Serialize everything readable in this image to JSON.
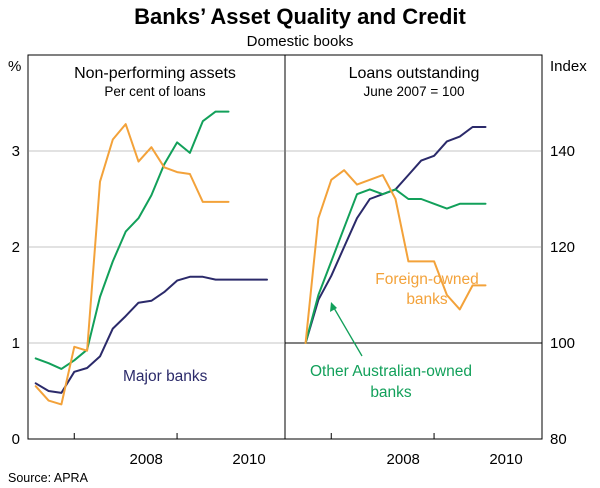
{
  "title": "Banks’ Asset Quality and Credit",
  "subtitle": "Domestic books",
  "source": "Source: APRA",
  "colors": {
    "major": "#2b2a6a",
    "other": "#12a05a",
    "foreign": "#f3a23a",
    "axis": "#000000"
  },
  "chart_data": [
    {
      "type": "line",
      "title": "Non-performing assets",
      "subtitle": "Per cent of loans",
      "ylabel": "%",
      "ylim": [
        0,
        4
      ],
      "yticks": [
        0,
        1,
        2,
        3
      ],
      "xlim": [
        2006.6,
        2011.6
      ],
      "xticks": [
        "2008",
        "2010"
      ],
      "xtick_values": [
        2008.9,
        2010.9
      ],
      "year_dividers": [
        2007.5,
        2009.5
      ],
      "series": [
        {
          "key": "major",
          "name": "Major banks",
          "x": [
            2006.75,
            2007.0,
            2007.25,
            2007.5,
            2007.75,
            2008.0,
            2008.25,
            2008.5,
            2008.75,
            2009.0,
            2009.25,
            2009.5,
            2009.75,
            2010.0,
            2010.25,
            2010.5,
            2010.75,
            2011.0,
            2011.25
          ],
          "y": [
            0.58,
            0.5,
            0.48,
            0.7,
            0.74,
            0.86,
            1.15,
            1.28,
            1.42,
            1.44,
            1.53,
            1.65,
            1.69,
            1.69,
            1.66,
            1.66,
            1.66,
            1.66,
            1.66
          ]
        },
        {
          "key": "other",
          "name": "Other Australian-owned banks",
          "x": [
            2006.75,
            2007.0,
            2007.25,
            2007.5,
            2007.75,
            2008.0,
            2008.25,
            2008.5,
            2008.75,
            2009.0,
            2009.25,
            2009.5,
            2009.75,
            2010.0,
            2010.25,
            2010.5
          ],
          "y": [
            0.84,
            0.79,
            0.73,
            0.82,
            0.93,
            1.48,
            1.85,
            2.16,
            2.3,
            2.54,
            2.86,
            3.09,
            2.98,
            3.31,
            3.41,
            3.41
          ]
        },
        {
          "key": "foreign",
          "name": "Foreign-owned banks",
          "x": [
            2006.75,
            2007.0,
            2007.25,
            2007.5,
            2007.75,
            2008.0,
            2008.25,
            2008.5,
            2008.75,
            2009.0,
            2009.25,
            2009.5,
            2009.75,
            2010.0,
            2010.25,
            2010.5
          ],
          "y": [
            0.55,
            0.4,
            0.36,
            0.96,
            0.92,
            2.68,
            3.12,
            3.28,
            2.89,
            3.04,
            2.83,
            2.78,
            2.76,
            2.47,
            2.47,
            2.47
          ]
        }
      ]
    },
    {
      "type": "line",
      "title": "Loans outstanding",
      "subtitle": "June 2007 = 100",
      "ylabel": "Index",
      "ylim": [
        80,
        160
      ],
      "yticks": [
        80,
        100,
        120,
        140
      ],
      "xlim": [
        2006.6,
        2011.6
      ],
      "xticks": [
        "2008",
        "2010"
      ],
      "xtick_values": [
        2008.9,
        2010.9
      ],
      "year_dividers": [
        2007.5,
        2009.5
      ],
      "series": [
        {
          "key": "major",
          "name": "Major banks",
          "x": [
            2007.0,
            2007.25,
            2007.5,
            2007.75,
            2008.0,
            2008.25,
            2008.5,
            2008.75,
            2009.0,
            2009.25,
            2009.5,
            2009.75,
            2010.0,
            2010.25,
            2010.5
          ],
          "y": [
            100,
            109,
            114,
            120,
            126,
            130,
            131,
            132,
            135,
            138,
            139,
            142,
            143,
            145,
            145
          ]
        },
        {
          "key": "other",
          "name": "Other Australian-owned banks",
          "x": [
            2007.0,
            2007.25,
            2007.5,
            2007.75,
            2008.0,
            2008.25,
            2008.5,
            2008.75,
            2009.0,
            2009.25,
            2009.5,
            2009.75,
            2010.0,
            2010.25,
            2010.5
          ],
          "y": [
            100,
            110,
            117,
            124,
            131,
            132,
            131,
            132,
            130,
            130,
            129,
            128,
            129,
            129,
            129
          ]
        },
        {
          "key": "foreign",
          "name": "Foreign-owned banks",
          "x": [
            2007.0,
            2007.25,
            2007.5,
            2007.75,
            2008.0,
            2008.25,
            2008.5,
            2008.75,
            2009.0,
            2009.25,
            2009.5,
            2009.75,
            2010.0,
            2010.25,
            2010.5
          ],
          "y": [
            100,
            126,
            134,
            136,
            133,
            134,
            135,
            130,
            117,
            117,
            117,
            110,
            107,
            112,
            112
          ]
        }
      ]
    }
  ],
  "annotations": {
    "major": "Major banks",
    "foreign_line1": "Foreign-owned",
    "foreign_line2": "banks",
    "other_line1": "Other Australian-owned",
    "other_line2": "banks"
  }
}
